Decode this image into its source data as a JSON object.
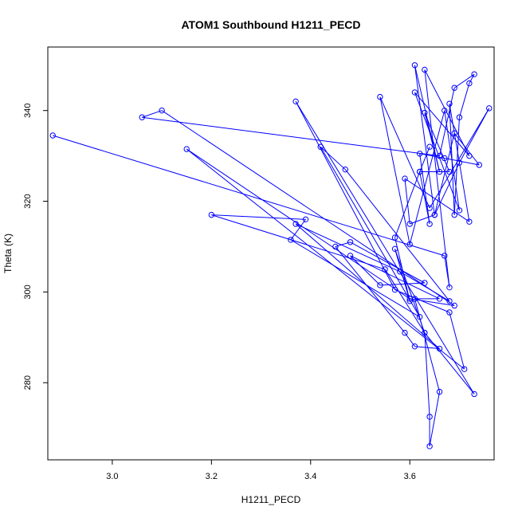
{
  "chart_data": {
    "type": "scatter",
    "title": "ATOM1 Southbound H1211_PECD",
    "xlabel": "H1211_PECD",
    "ylabel": "Theta (K)",
    "xlim": [
      2.87,
      3.77
    ],
    "ylim": [
      263.0,
      354.0
    ],
    "xticks": [
      3.0,
      3.2,
      3.4,
      3.6
    ],
    "yticks": [
      280,
      300,
      320,
      340
    ],
    "x_tick_labels": [
      "3.0",
      "3.2",
      "3.4",
      "3.6"
    ],
    "y_tick_labels": [
      "280",
      "300",
      "320",
      "340"
    ],
    "color": "#0000ff",
    "grid": false,
    "style": "points connected by lines",
    "series": [
      {
        "points": [
          [
            2.88,
            334.5
          ],
          [
            3.67,
            308.0
          ],
          [
            3.68,
            301.0
          ],
          [
            3.63,
            349.0
          ],
          [
            3.72,
            330.0
          ],
          [
            3.61,
            344.0
          ],
          [
            3.7,
            318.0
          ],
          [
            3.67,
            340.0
          ],
          [
            3.6,
            310.5
          ],
          [
            3.54,
            343.0
          ],
          [
            3.64,
            318.5
          ],
          [
            3.76,
            340.5
          ],
          [
            3.7,
            328.5
          ],
          [
            3.65,
            317.0
          ],
          [
            3.69,
            335.0
          ],
          [
            3.74,
            328.0
          ],
          [
            3.67,
            329.5
          ],
          [
            3.62,
            330.5
          ],
          [
            3.64,
            315.0
          ],
          [
            3.62,
            326.5
          ],
          [
            3.68,
            326.5
          ],
          [
            3.63,
            339.5
          ],
          [
            3.66,
            326.5
          ],
          [
            3.61,
            350.0
          ],
          [
            3.65,
            317.0
          ],
          [
            3.6,
            315.0
          ],
          [
            3.59,
            325.0
          ],
          [
            3.72,
            315.5
          ],
          [
            3.68,
            341.5
          ],
          [
            3.69,
            317.0
          ],
          [
            3.7,
            338.5
          ],
          [
            3.72,
            346.0
          ],
          [
            3.73,
            348.0
          ],
          [
            3.69,
            345.0
          ],
          [
            3.66,
            330.0
          ],
          [
            3.06,
            338.5
          ],
          [
            3.1,
            340.0
          ],
          [
            3.69,
            297.0
          ],
          [
            3.6,
            298.5
          ],
          [
            3.15,
            331.5
          ],
          [
            3.71,
            283.0
          ],
          [
            3.68,
            295.5
          ],
          [
            3.57,
            300.5
          ],
          [
            3.37,
            342.0
          ],
          [
            3.73,
            277.5
          ],
          [
            3.63,
            291.0
          ],
          [
            3.55,
            305.0
          ],
          [
            3.2,
            317.0
          ],
          [
            3.39,
            316.0
          ],
          [
            3.36,
            311.5
          ],
          [
            3.62,
            294.5
          ],
          [
            3.42,
            332.0
          ],
          [
            3.47,
            327.0
          ],
          [
            3.68,
            298.0
          ],
          [
            3.58,
            304.5
          ],
          [
            3.37,
            315.0
          ],
          [
            3.66,
            287.5
          ],
          [
            3.61,
            288.0
          ],
          [
            3.59,
            291.0
          ],
          [
            3.45,
            310.0
          ],
          [
            3.48,
            311.0
          ],
          [
            3.63,
            302.0
          ],
          [
            3.54,
            301.5
          ],
          [
            3.48,
            308.0
          ],
          [
            3.66,
            298.5
          ],
          [
            3.61,
            298.5
          ],
          [
            3.66,
            278.0
          ],
          [
            3.64,
            266.0
          ],
          [
            3.64,
            272.5
          ],
          [
            3.63,
            291.0
          ],
          [
            3.57,
            309.5
          ],
          [
            3.6,
            298.0
          ],
          [
            3.57,
            312.0
          ],
          [
            3.62,
            326.5
          ],
          [
            3.64,
            332.0
          ]
        ]
      }
    ]
  }
}
